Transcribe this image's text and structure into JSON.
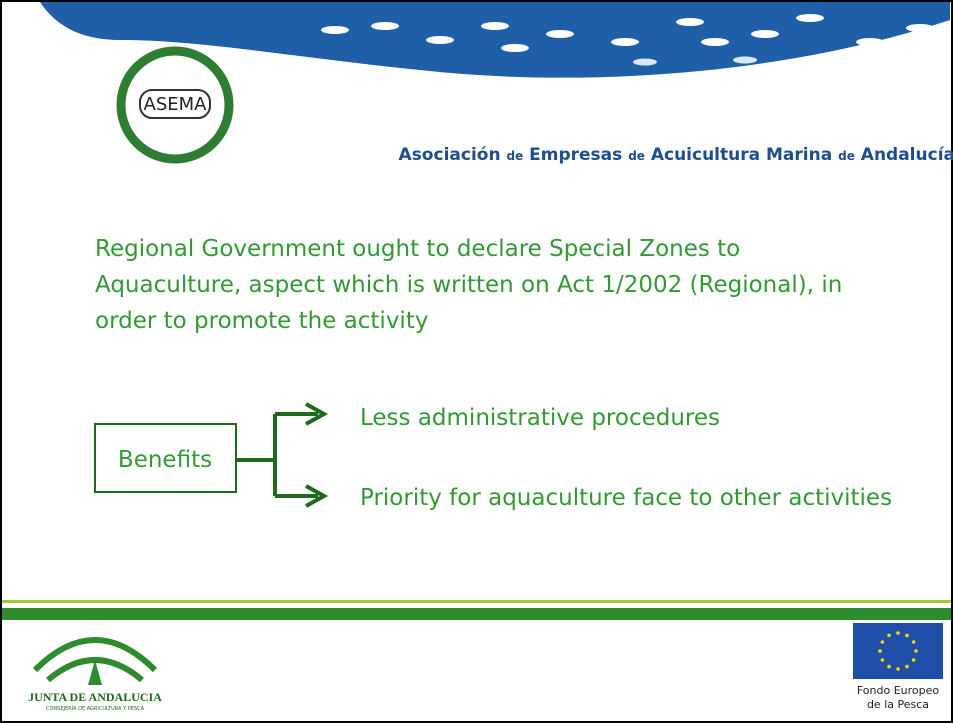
{
  "header": {
    "logo": "ASEMA",
    "title_parts": [
      "Asociación",
      "de",
      "Empresas",
      "de",
      "Acuicultura Marina",
      "de",
      "Andalucía"
    ]
  },
  "body": {
    "paragraph_lines": [
      "Regional Government ought to declare Special Zones to",
      "Aquaculture, aspect which is written on Act 1/2002 (Regional), in",
      "order to promote the activity"
    ],
    "box_label": "Benefits",
    "benefits": [
      "Less administrative procedures",
      "Priority for aquaculture face to other activities"
    ]
  },
  "footer": {
    "junta_name": "JUNTA DE ANDALUCIA",
    "junta_sub": "CONSEJERÍA DE AGRICULTURA Y PESCA",
    "eu_line1": "Fondo Europeo",
    "eu_line2": "de la Pesca"
  }
}
